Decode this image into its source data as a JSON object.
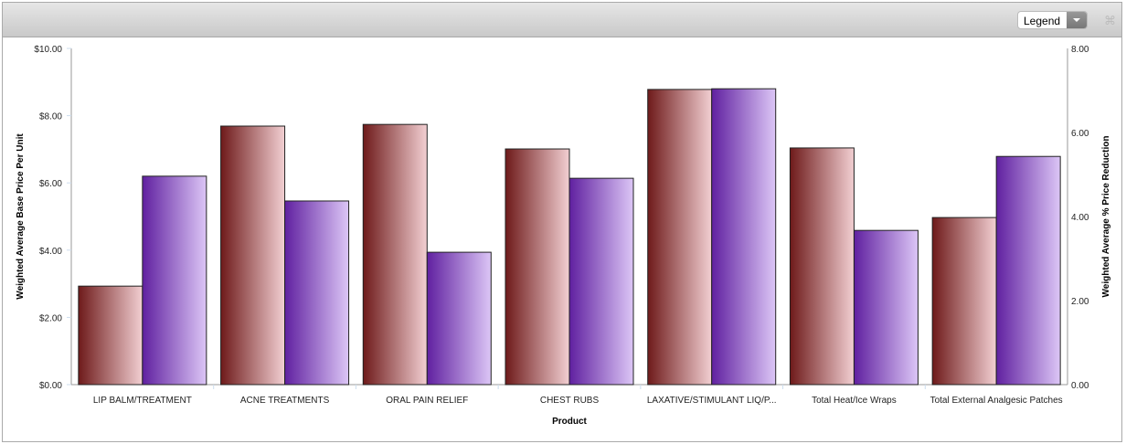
{
  "toolbar": {
    "legend_label": "Legend",
    "expand_icon": "collapse-arrows-icon"
  },
  "chart_data": {
    "type": "bar",
    "categories": [
      "LIP BALM/TREATMENT",
      "ACNE TREATMENTS",
      "ORAL PAIN RELIEF",
      "CHEST RUBS",
      "LAXATIVE/STIMULANT LIQ/P...",
      "Total Heat/Ice Wraps",
      "Total External Analgesic Patches"
    ],
    "xlabel": "Product",
    "ylabel": "Weighted Average Base Price Per Unit",
    "y2label": "Weighted Average % Price Reduction",
    "ylim": [
      0,
      10
    ],
    "y2lim": [
      0,
      8
    ],
    "yticks": [
      "$0.00",
      "$2.00",
      "$4.00",
      "$6.00",
      "$8.00",
      "$10.00"
    ],
    "y2ticks": [
      "0.00",
      "2.00",
      "4.00",
      "6.00",
      "8.00"
    ],
    "series": [
      {
        "axis": "left",
        "values": [
          2.93,
          7.69,
          7.74,
          7.01,
          8.78,
          7.04,
          4.97
        ],
        "colors": [
          "#6e1a1a",
          "#f2cfd2"
        ]
      },
      {
        "axis": "right",
        "values": [
          4.96,
          4.37,
          3.15,
          4.91,
          7.04,
          3.67,
          5.43
        ],
        "colors": [
          "#6020a0",
          "#dcc6f6"
        ]
      }
    ],
    "grid": false
  }
}
